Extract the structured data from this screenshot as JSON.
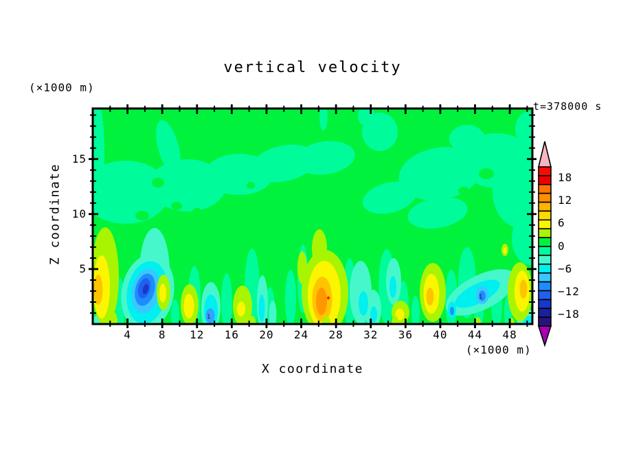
{
  "figure": {
    "title": "vertical velocity",
    "time_label": "t=378000 s",
    "x_axis": {
      "label": "X coordinate",
      "unit_label": "(×1000 m)",
      "tick_labels": [
        "4",
        "8",
        "12",
        "16",
        "20",
        "24",
        "28",
        "32",
        "36",
        "40",
        "44",
        "48"
      ]
    },
    "y_axis": {
      "label": "Z coordinate",
      "unit_label": "(×1000 m)",
      "tick_labels": [
        "5",
        "10",
        "15"
      ]
    },
    "colorbar": {
      "tick_labels": [
        "18",
        "12",
        "6",
        "0",
        "−6",
        "−12",
        "−18"
      ],
      "segment_colors": [
        "#FF0A00",
        "#EF0000",
        "#FF7300",
        "#FF8E00",
        "#FFB200",
        "#FFDC00",
        "#FBF600",
        "#A9F400",
        "#00F23C",
        "#00FB9B",
        "#46F7CC",
        "#00F0F0",
        "#38C8FF",
        "#1E8CFF",
        "#2060F0",
        "#1838C8",
        "#1820A0",
        "#28137E"
      ],
      "over_color": "#F6B6C2",
      "under_color": "#A800B4"
    },
    "plot": {
      "contour_marks": [
        {
          "text": "1"
        },
        {
          "text": "1"
        }
      ]
    }
  },
  "chart_data": {
    "type": "heatmap",
    "title": "vertical velocity",
    "xlabel": "X coordinate (×1000 m)",
    "ylabel": "Z coordinate (×1000 m)",
    "time_seconds": 378000,
    "xlim": [
      0,
      50.6
    ],
    "ylim": [
      0,
      19.6
    ],
    "x_ticks": [
      4,
      8,
      12,
      16,
      20,
      24,
      28,
      32,
      36,
      40,
      44,
      48
    ],
    "x_minor_tick_step": 2,
    "y_ticks": [
      5,
      10,
      15
    ],
    "y_minor_tick_step": 1,
    "grid": false,
    "colorbar_ticks": [
      18,
      12,
      6,
      0,
      -6,
      -12,
      -18
    ],
    "colorbar_segment_count": 18,
    "colorbar_open_ended": true,
    "background": "weak vertical velocity (about -3 to +3) fills most of the domain; convective cells confined below z ≈ 5",
    "features": [
      {
        "kind": "updraft",
        "x": 1.0,
        "z": 2.6,
        "peak_value": 9
      },
      {
        "kind": "downdraft",
        "x": 6.8,
        "z": 2.6,
        "peak_value": -15
      },
      {
        "kind": "updraft",
        "x": 8.2,
        "z": 2.8,
        "peak_value": 6
      },
      {
        "kind": "updraft",
        "x": 11.2,
        "z": 1.7,
        "peak_value": 6
      },
      {
        "kind": "downdraft",
        "x": 13.6,
        "z": 1.1,
        "peak_value": -9
      },
      {
        "kind": "updraft",
        "x": 17.1,
        "z": 1.6,
        "peak_value": 6
      },
      {
        "kind": "downdraft",
        "x": 19.5,
        "z": 2.0,
        "peak_value": -6
      },
      {
        "kind": "updraft",
        "x": 26.7,
        "z": 2.4,
        "peak_value": 15
      },
      {
        "kind": "downdraft",
        "x": 30.9,
        "z": 1.8,
        "peak_value": -6
      },
      {
        "kind": "updraft",
        "x": 35.4,
        "z": 1.1,
        "peak_value": 6
      },
      {
        "kind": "updraft",
        "x": 39.1,
        "z": 2.9,
        "peak_value": 9
      },
      {
        "kind": "downdraft",
        "x": 44.9,
        "z": 2.6,
        "peak_value": -9
      },
      {
        "kind": "updraft",
        "x": 49.3,
        "z": 3.0,
        "peak_value": 9
      }
    ]
  }
}
